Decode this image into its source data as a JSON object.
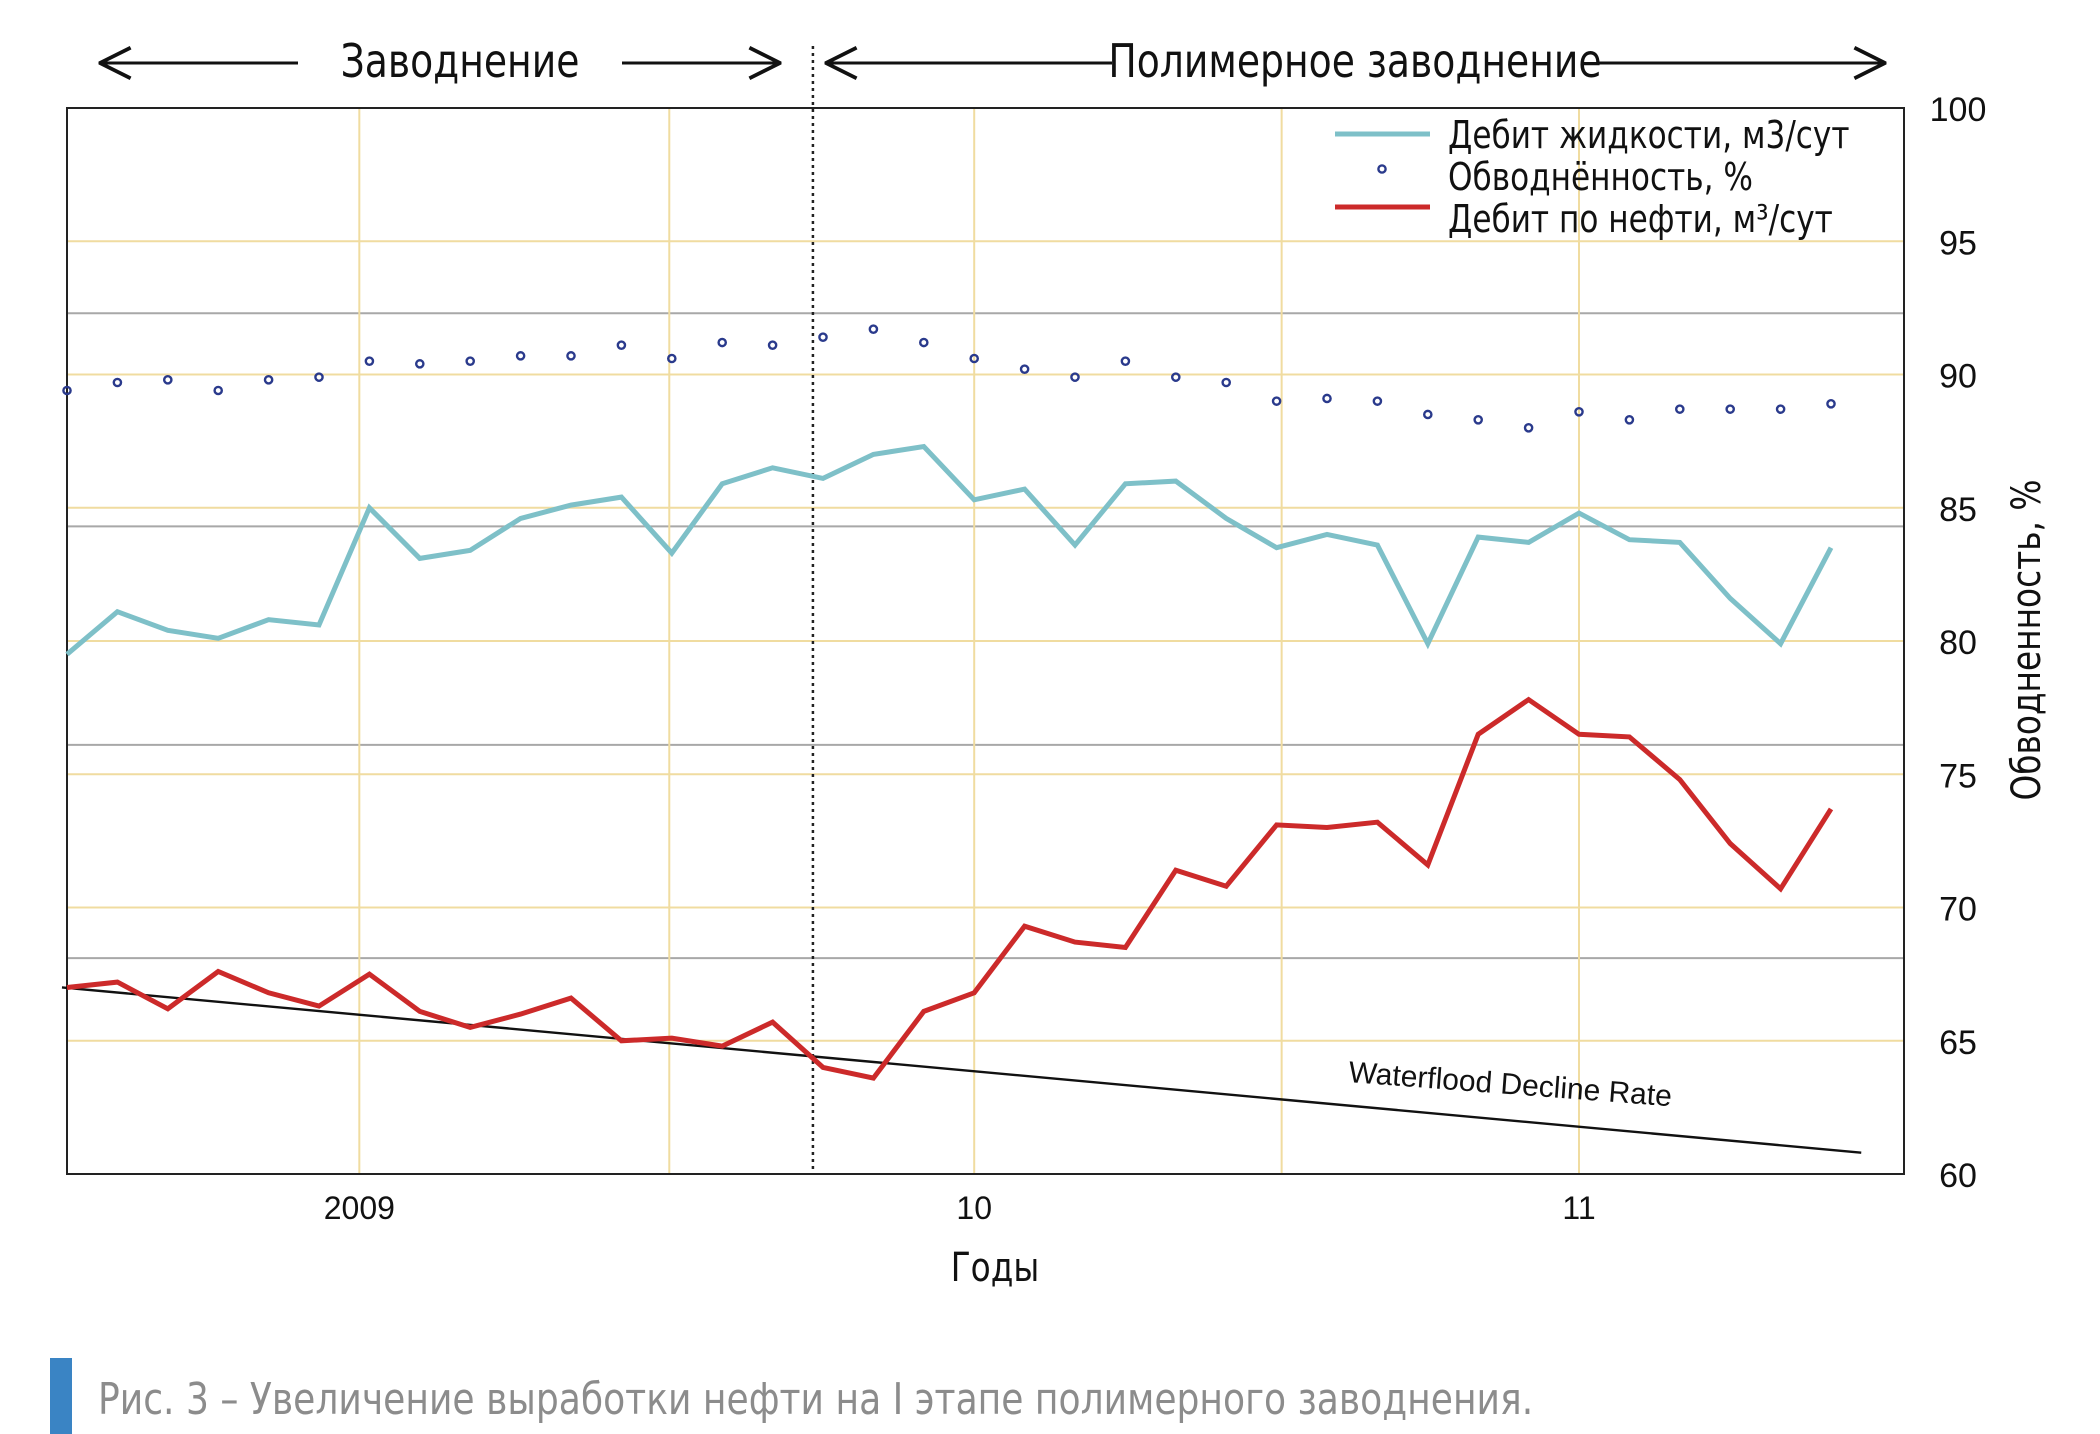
{
  "caption": "Рис. 3 – Увеличение выработки нефти на I этапе полимерного заводнения.",
  "phases": {
    "left": "Заводнение",
    "right": "Полимерное заводнение"
  },
  "chart_data": {
    "type": "line",
    "xlabel": "Годы",
    "ylabel": "Обводненность, %",
    "ylim": [
      60,
      100
    ],
    "yticks": [
      60,
      65,
      70,
      75,
      80,
      85,
      90,
      95,
      100
    ],
    "x_index_range": [
      0,
      35.6
    ],
    "x_ticks": [
      {
        "label": "2009",
        "index": 5.8
      },
      {
        "label": "10",
        "index": 18.0
      },
      {
        "label": "11",
        "index": 30.0
      }
    ],
    "vertical_divider_index": 14.8,
    "legend_position": "top-right",
    "colors": {
      "liquid": "#7ec0c8",
      "watercut": "#2a3a8c",
      "oil": "#cc2a2a",
      "decline": "#111111",
      "grid_major": "#a8a8a8",
      "grid_minor": "#f0dca0"
    },
    "series": [
      {
        "name": "Дебит жидкости, м3/сут",
        "style": "line",
        "values": [
          79.5,
          81.1,
          80.4,
          80.1,
          80.8,
          80.6,
          85.0,
          83.1,
          83.4,
          84.6,
          85.1,
          85.4,
          83.3,
          85.9,
          86.5,
          86.1,
          87.0,
          87.3,
          85.3,
          85.7,
          83.6,
          85.9,
          86.0,
          84.6,
          83.5,
          84.0,
          83.6,
          79.9,
          83.9,
          83.7,
          84.8,
          83.8,
          83.7,
          81.6,
          79.9,
          83.5
        ]
      },
      {
        "name": "Обводнённость, %",
        "style": "markers",
        "values": [
          89.4,
          89.7,
          89.8,
          89.4,
          89.8,
          89.9,
          90.5,
          90.4,
          90.5,
          90.7,
          90.7,
          91.1,
          90.6,
          91.2,
          91.1,
          91.4,
          91.7,
          91.2,
          90.6,
          90.2,
          89.9,
          90.5,
          89.9,
          89.7,
          89.0,
          89.1,
          89.0,
          88.5,
          88.3,
          88.0,
          88.6,
          88.3,
          88.7,
          88.7,
          88.7,
          88.9
        ]
      },
      {
        "name": "Дебит по нефти, м³/сут",
        "style": "line",
        "values": [
          67.0,
          67.2,
          66.2,
          67.6,
          66.8,
          66.3,
          67.5,
          66.1,
          65.5,
          66.0,
          66.6,
          65.0,
          65.1,
          64.8,
          65.7,
          64.0,
          63.6,
          66.1,
          66.8,
          69.3,
          68.7,
          68.5,
          71.4,
          70.8,
          73.1,
          73.0,
          73.2,
          71.6,
          76.5,
          77.8,
          76.5,
          76.4,
          74.8,
          72.4,
          70.7,
          73.7
        ]
      },
      {
        "name": "Waterflood Decline Rate",
        "style": "trend",
        "points": [
          [
            -0.1,
            67.0
          ],
          [
            35.6,
            60.8
          ]
        ]
      }
    ]
  }
}
